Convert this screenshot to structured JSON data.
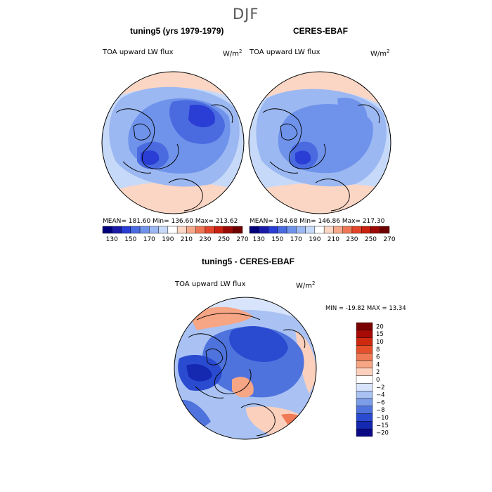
{
  "figure": {
    "season": "DJF"
  },
  "panels": [
    {
      "title": "tuning5 (yrs 1979-1979)",
      "field": "TOA upward LW flux",
      "units_base": "W/m",
      "units_exp": "2",
      "stats": "MEAN= 181.60  Min= 136.60  Max= 213.62"
    },
    {
      "title": "CERES-EBAF",
      "field": "TOA upward LW flux",
      "units_base": "W/m",
      "units_exp": "2",
      "stats": "MEAN= 184.68  Min= 146.86  Max= 217.30"
    },
    {
      "title": "tuning5 - CERES-EBAF",
      "field": "TOA upward LW flux",
      "units_base": "W/m",
      "units_exp": "2",
      "stats": "MIN = -19.82 MAX =  13.34"
    }
  ],
  "colorbars": {
    "absolute": {
      "orientation": "horizontal",
      "tick_labels": [
        "130",
        "150",
        "170",
        "190",
        "210",
        "230",
        "250",
        "270"
      ],
      "colors": [
        "#00007a",
        "#1a1aa8",
        "#2a3dd4",
        "#4a6ae0",
        "#6f93ea",
        "#9cb8f2",
        "#c7d9f8",
        "#ffffff",
        "#fbd6c4",
        "#f5a98a",
        "#ee7654",
        "#e2452a",
        "#c9200f",
        "#9b0a05",
        "#6e0000"
      ]
    },
    "difference": {
      "orientation": "vertical",
      "tick_labels": [
        "20",
        "15",
        "10",
        "8",
        "6",
        "4",
        "2",
        "0",
        "−2",
        "−4",
        "−6",
        "−8",
        "−10",
        "−15",
        "−20"
      ],
      "colors": [
        "#7a0000",
        "#a80a05",
        "#cf2a10",
        "#e5502b",
        "#ef7a55",
        "#f6a585",
        "#fbd0bd",
        "#ffffff",
        "#d8e4fb",
        "#a9c2f3",
        "#7c9ee9",
        "#4f73dd",
        "#2a4bd0",
        "#1428b0",
        "#0a0a85"
      ]
    }
  },
  "chart_data": [
    {
      "type": "heatmap",
      "title": "tuning5 (yrs 1979-1979)",
      "projection": "north polar stereographic",
      "variable": "TOA upward LW flux",
      "units": "W/m2",
      "season": "DJF",
      "mean": 181.6,
      "min": 136.6,
      "max": 213.62,
      "levels": [
        130,
        140,
        150,
        160,
        170,
        180,
        190,
        200,
        210,
        220,
        230,
        240,
        250,
        260,
        270
      ]
    },
    {
      "type": "heatmap",
      "title": "CERES-EBAF",
      "projection": "north polar stereographic",
      "variable": "TOA upward LW flux",
      "units": "W/m2",
      "season": "DJF",
      "mean": 184.68,
      "min": 146.86,
      "max": 217.3,
      "levels": [
        130,
        140,
        150,
        160,
        170,
        180,
        190,
        200,
        210,
        220,
        230,
        240,
        250,
        260,
        270
      ]
    },
    {
      "type": "heatmap",
      "title": "tuning5 - CERES-EBAF",
      "projection": "north polar stereographic",
      "variable": "TOA upward LW flux",
      "units": "W/m2",
      "season": "DJF",
      "min": -19.82,
      "max": 13.34,
      "levels": [
        -20,
        -15,
        -10,
        -8,
        -6,
        -4,
        -2,
        0,
        2,
        4,
        6,
        8,
        10,
        15,
        20
      ]
    }
  ]
}
